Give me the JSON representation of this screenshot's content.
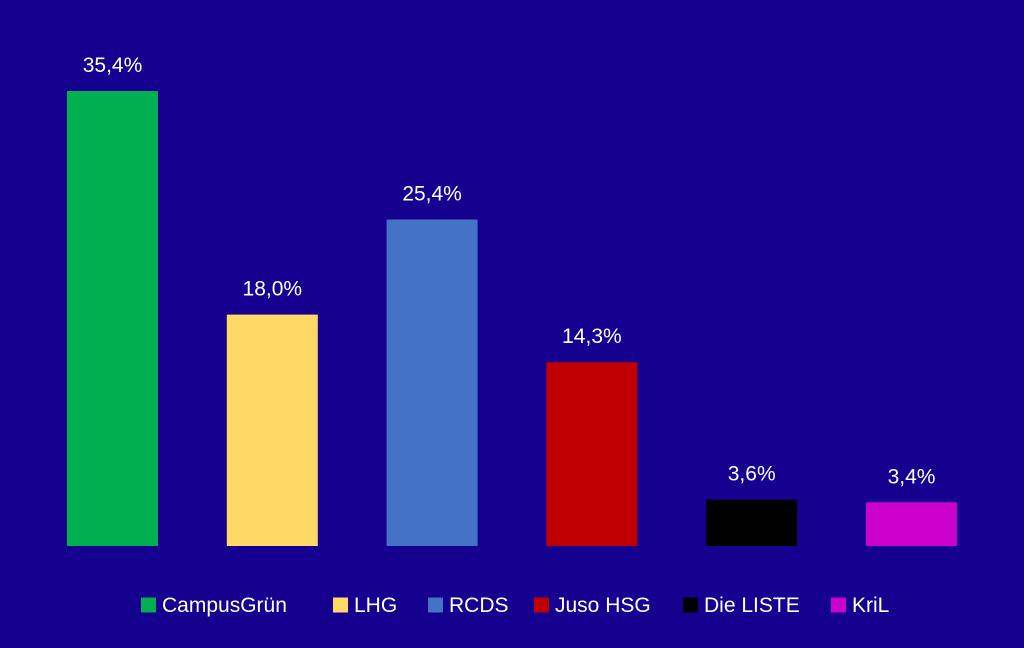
{
  "chart_data": {
    "type": "bar",
    "categories": [
      "CampusGrün",
      "LHG",
      "RCDS",
      "Juso HSG",
      "Die LISTE",
      "KriL"
    ],
    "values": [
      35.4,
      18.0,
      25.4,
      14.3,
      3.6,
      3.4
    ],
    "value_labels": [
      "35,4%",
      "18,0%",
      "25,4%",
      "14,3%",
      "3,6%",
      "3,4%"
    ],
    "colors": [
      "#00b050",
      "#ffd966",
      "#4472c4",
      "#c00000",
      "#000000",
      "#cc00cc"
    ],
    "background": "#15008f",
    "text_color": "#ffffff",
    "ylim": [
      0,
      35.4
    ],
    "grid": false,
    "legend": "bottom"
  }
}
